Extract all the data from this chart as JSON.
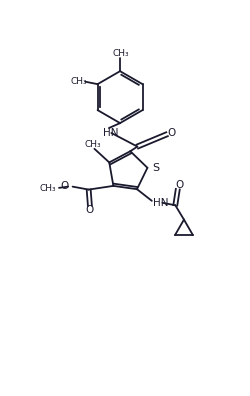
{
  "bg_color": "#ffffff",
  "line_color": "#1a1a2e",
  "figsize": [
    2.5,
    3.96
  ],
  "dpi": 100,
  "xlim": [
    0,
    10
  ],
  "ylim": [
    0,
    15.84
  ]
}
